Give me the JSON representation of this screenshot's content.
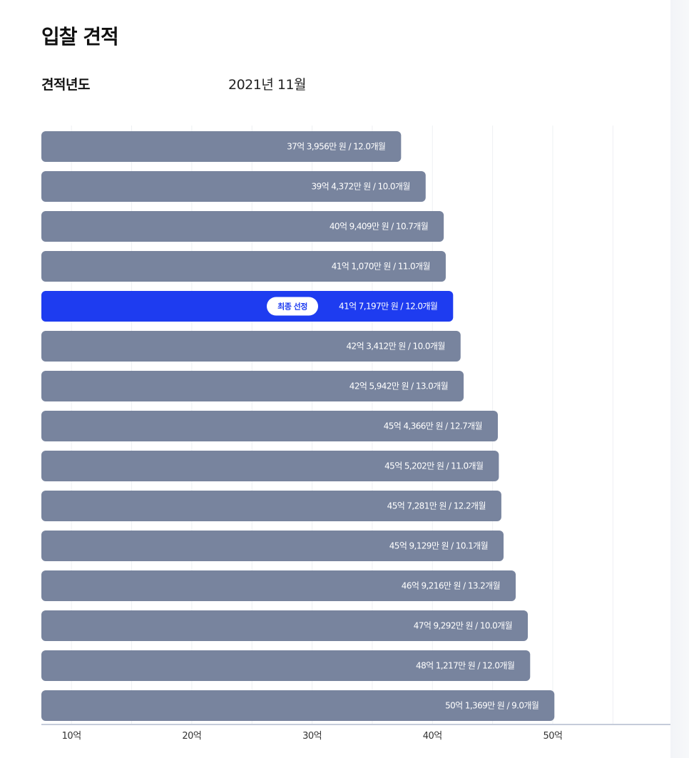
{
  "header": {
    "title": "입찰 견적",
    "year_label": "견적년도",
    "year_value": "2021년 11월"
  },
  "colors": {
    "bar": "#78849E",
    "highlight_bar": "#1E3CF0",
    "bar_text": "#FFFFFF",
    "grid": "#EEF0F3",
    "axis_line": "#C5CCDA"
  },
  "chart_data": {
    "type": "bar",
    "orientation": "horizontal",
    "title": "",
    "xlabel": "",
    "ylabel": "",
    "x_unit": "억",
    "xticks": [
      10,
      20,
      30,
      40,
      50
    ],
    "tick_labels": [
      "10억",
      "20억",
      "30억",
      "40억",
      "50억"
    ],
    "xlim": [
      7.5,
      60
    ],
    "grid": true,
    "highlight_badge": "최종 선정",
    "bars": [
      {
        "value": 37.3956,
        "label": "37억 3,956만 원 / 12.0개월",
        "selected": false
      },
      {
        "value": 39.4372,
        "label": "39억 4,372만 원 / 10.0개월",
        "selected": false
      },
      {
        "value": 40.9409,
        "label": "40억 9,409만 원 / 10.7개월",
        "selected": false
      },
      {
        "value": 41.107,
        "label": "41억 1,070만 원 / 11.0개월",
        "selected": false
      },
      {
        "value": 41.7197,
        "label": "41억 7,197만 원 / 12.0개월",
        "selected": true
      },
      {
        "value": 42.3412,
        "label": "42억 3,412만 원 / 10.0개월",
        "selected": false
      },
      {
        "value": 42.5942,
        "label": "42억 5,942만 원 / 13.0개월",
        "selected": false
      },
      {
        "value": 45.4366,
        "label": "45억 4,366만 원 / 12.7개월",
        "selected": false
      },
      {
        "value": 45.5202,
        "label": "45억 5,202만 원 / 11.0개월",
        "selected": false
      },
      {
        "value": 45.7281,
        "label": "45억 7,281만 원 / 12.2개월",
        "selected": false
      },
      {
        "value": 45.9129,
        "label": "45억 9,129만 원 / 10.1개월",
        "selected": false
      },
      {
        "value": 46.9216,
        "label": "46억 9,216만 원 / 13.2개월",
        "selected": false
      },
      {
        "value": 47.9292,
        "label": "47억 9,292만 원 / 10.0개월",
        "selected": false
      },
      {
        "value": 48.1217,
        "label": "48억 1,217만 원 / 12.0개월",
        "selected": false
      },
      {
        "value": 50.1369,
        "label": "50억 1,369만 원 / 9.0개월",
        "selected": false
      }
    ]
  }
}
